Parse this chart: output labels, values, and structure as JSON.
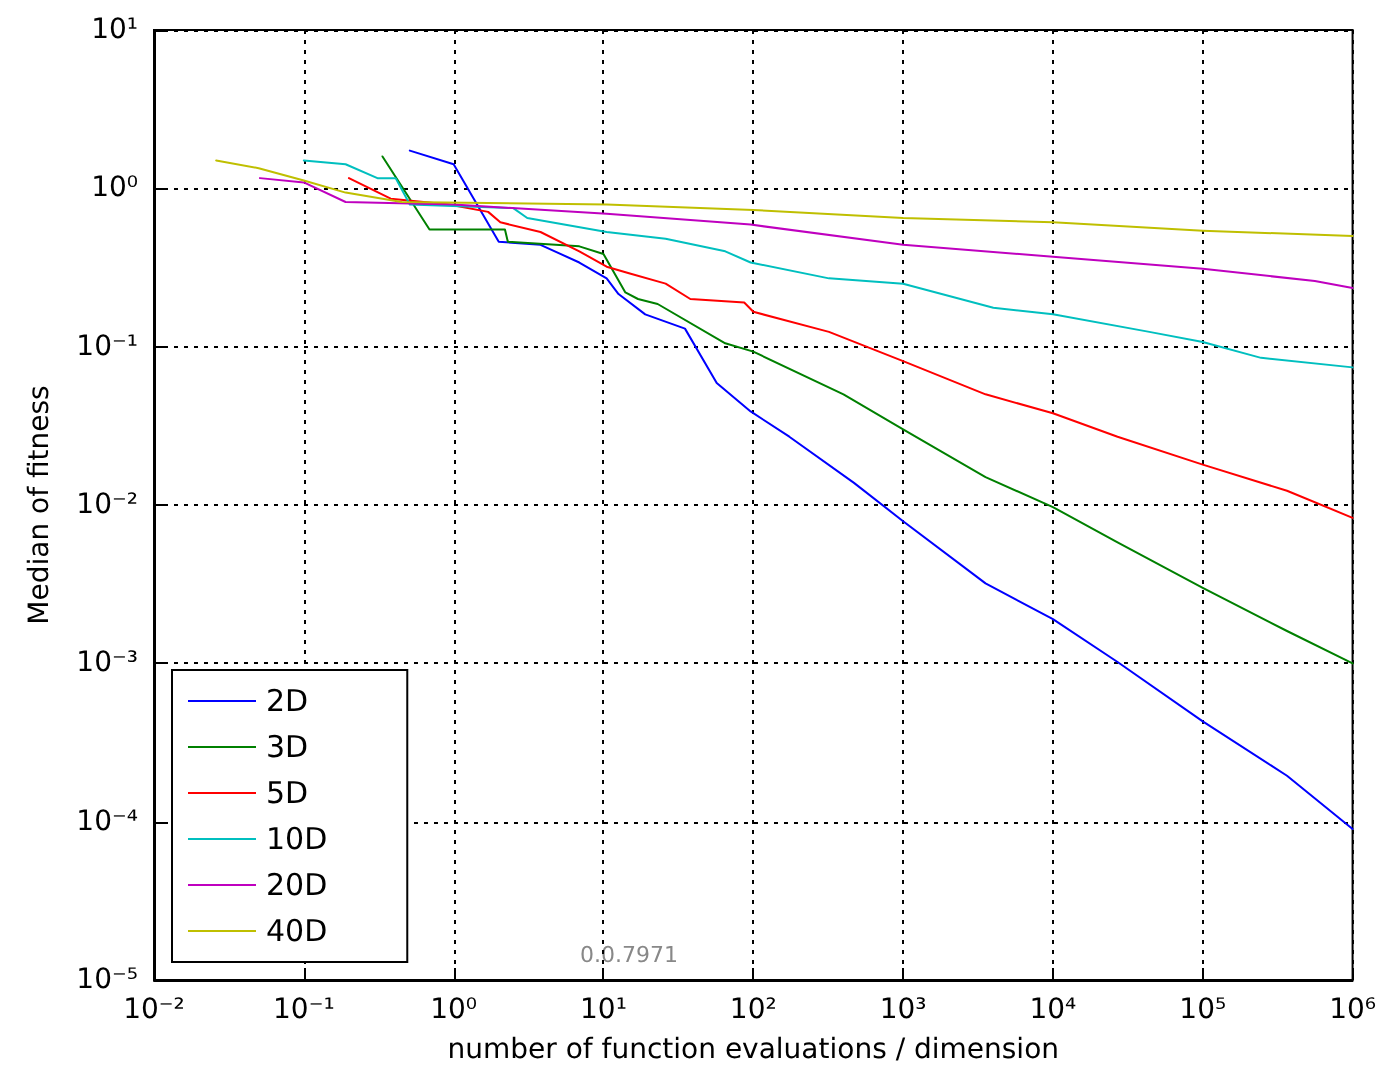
{
  "chart_data": {
    "type": "line",
    "xlabel": "number of function evaluations / dimension",
    "ylabel": "Median of fitness",
    "log": "xy",
    "grid": true,
    "legend": "bottom left",
    "marker": "none",
    "line_style": "solid",
    "xlim": [
      0.01,
      1000000
    ],
    "ylim": [
      1e-05,
      10
    ],
    "xticks": [
      {
        "value": 0.01,
        "label": "10⁻²"
      },
      {
        "value": 0.1,
        "label": "10⁻¹"
      },
      {
        "value": 1,
        "label": "10⁰"
      },
      {
        "value": 10,
        "label": "10¹"
      },
      {
        "value": 100,
        "label": "10²"
      },
      {
        "value": 1000,
        "label": "10³"
      },
      {
        "value": 10000,
        "label": "10⁴"
      },
      {
        "value": 100000,
        "label": "10⁵"
      },
      {
        "value": 1000000,
        "label": "10⁶"
      }
    ],
    "yticks": [
      {
        "value": 1e-05,
        "label": "10⁻⁵"
      },
      {
        "value": 0.0001,
        "label": "10⁻⁴"
      },
      {
        "value": 0.001,
        "label": "10⁻³"
      },
      {
        "value": 0.01,
        "label": "10⁻²"
      },
      {
        "value": 0.1,
        "label": "10⁻¹"
      },
      {
        "value": 1,
        "label": "10⁰"
      },
      {
        "value": 10,
        "label": "10¹"
      }
    ],
    "annotations": [
      "0.0.7971"
    ],
    "series": [
      {
        "name": "2D",
        "color": "#0000ff",
        "x": [
          0.51,
          1,
          2,
          3.8,
          6.9,
          10.5,
          12.6,
          19,
          35,
          57,
          96,
          174,
          470,
          1000,
          3550,
          10000,
          27000,
          100000,
          365000,
          1000000
        ],
        "values": [
          1.73,
          1.42,
          0.46,
          0.44,
          0.34,
          0.27,
          0.215,
          0.16,
          0.13,
          0.059,
          0.039,
          0.027,
          0.0138,
          0.0079,
          0.0032,
          0.0019,
          0.00102,
          0.00043,
          0.000195,
          9e-05
        ]
      },
      {
        "name": "3D",
        "color": "#008000",
        "x": [
          0.335,
          0.69,
          2.2,
          2.3,
          6.9,
          10,
          14,
          17,
          23,
          65,
          100,
          400,
          1000,
          3550,
          10000,
          27000,
          100000,
          365000,
          1000000
        ],
        "values": [
          1.59,
          0.55,
          0.55,
          0.46,
          0.43,
          0.385,
          0.22,
          0.2,
          0.186,
          0.105,
          0.093,
          0.05,
          0.03,
          0.015,
          0.0097,
          0.0058,
          0.003,
          0.0016,
          0.001
        ]
      },
      {
        "name": "5D",
        "color": "#ff0000",
        "x": [
          0.2,
          0.38,
          0.93,
          1.7,
          2.05,
          3.8,
          6.9,
          10.5,
          15,
          26,
          38,
          87,
          100,
          320,
          1000,
          3550,
          10000,
          27000,
          100000,
          365000,
          1000000
        ],
        "values": [
          1.16,
          0.86,
          0.79,
          0.71,
          0.61,
          0.53,
          0.4,
          0.32,
          0.29,
          0.25,
          0.2,
          0.19,
          0.166,
          0.124,
          0.081,
          0.05,
          0.038,
          0.027,
          0.018,
          0.0123,
          0.0083
        ]
      },
      {
        "name": "10D",
        "color": "#00bfbf",
        "x": [
          0.1,
          0.19,
          0.31,
          0.41,
          0.51,
          2.5,
          3.1,
          10.5,
          26,
          65,
          96,
          320,
          1000,
          4000,
          10000,
          44000,
          100000,
          245000,
          1000000
        ],
        "values": [
          1.5,
          1.42,
          1.16,
          1.16,
          0.79,
          0.75,
          0.65,
          0.53,
          0.48,
          0.4,
          0.34,
          0.27,
          0.25,
          0.176,
          0.16,
          0.124,
          0.107,
          0.085,
          0.074
        ]
      },
      {
        "name": "20D",
        "color": "#bf00bf",
        "x": [
          0.051,
          0.1,
          0.19,
          1,
          10.5,
          96,
          1000,
          10000,
          100000,
          560000,
          1000000
        ],
        "values": [
          1.16,
          1.09,
          0.82,
          0.79,
          0.69,
          0.59,
          0.44,
          0.37,
          0.31,
          0.26,
          0.235
        ]
      },
      {
        "name": "40D",
        "color": "#bfbf00",
        "x": [
          0.026,
          0.05,
          0.1,
          0.19,
          0.45,
          10.5,
          100,
          1000,
          10000,
          100000,
          1000000
        ],
        "values": [
          1.5,
          1.34,
          1.12,
          0.94,
          0.82,
          0.79,
          0.73,
          0.65,
          0.61,
          0.54,
          0.5
        ]
      }
    ]
  }
}
